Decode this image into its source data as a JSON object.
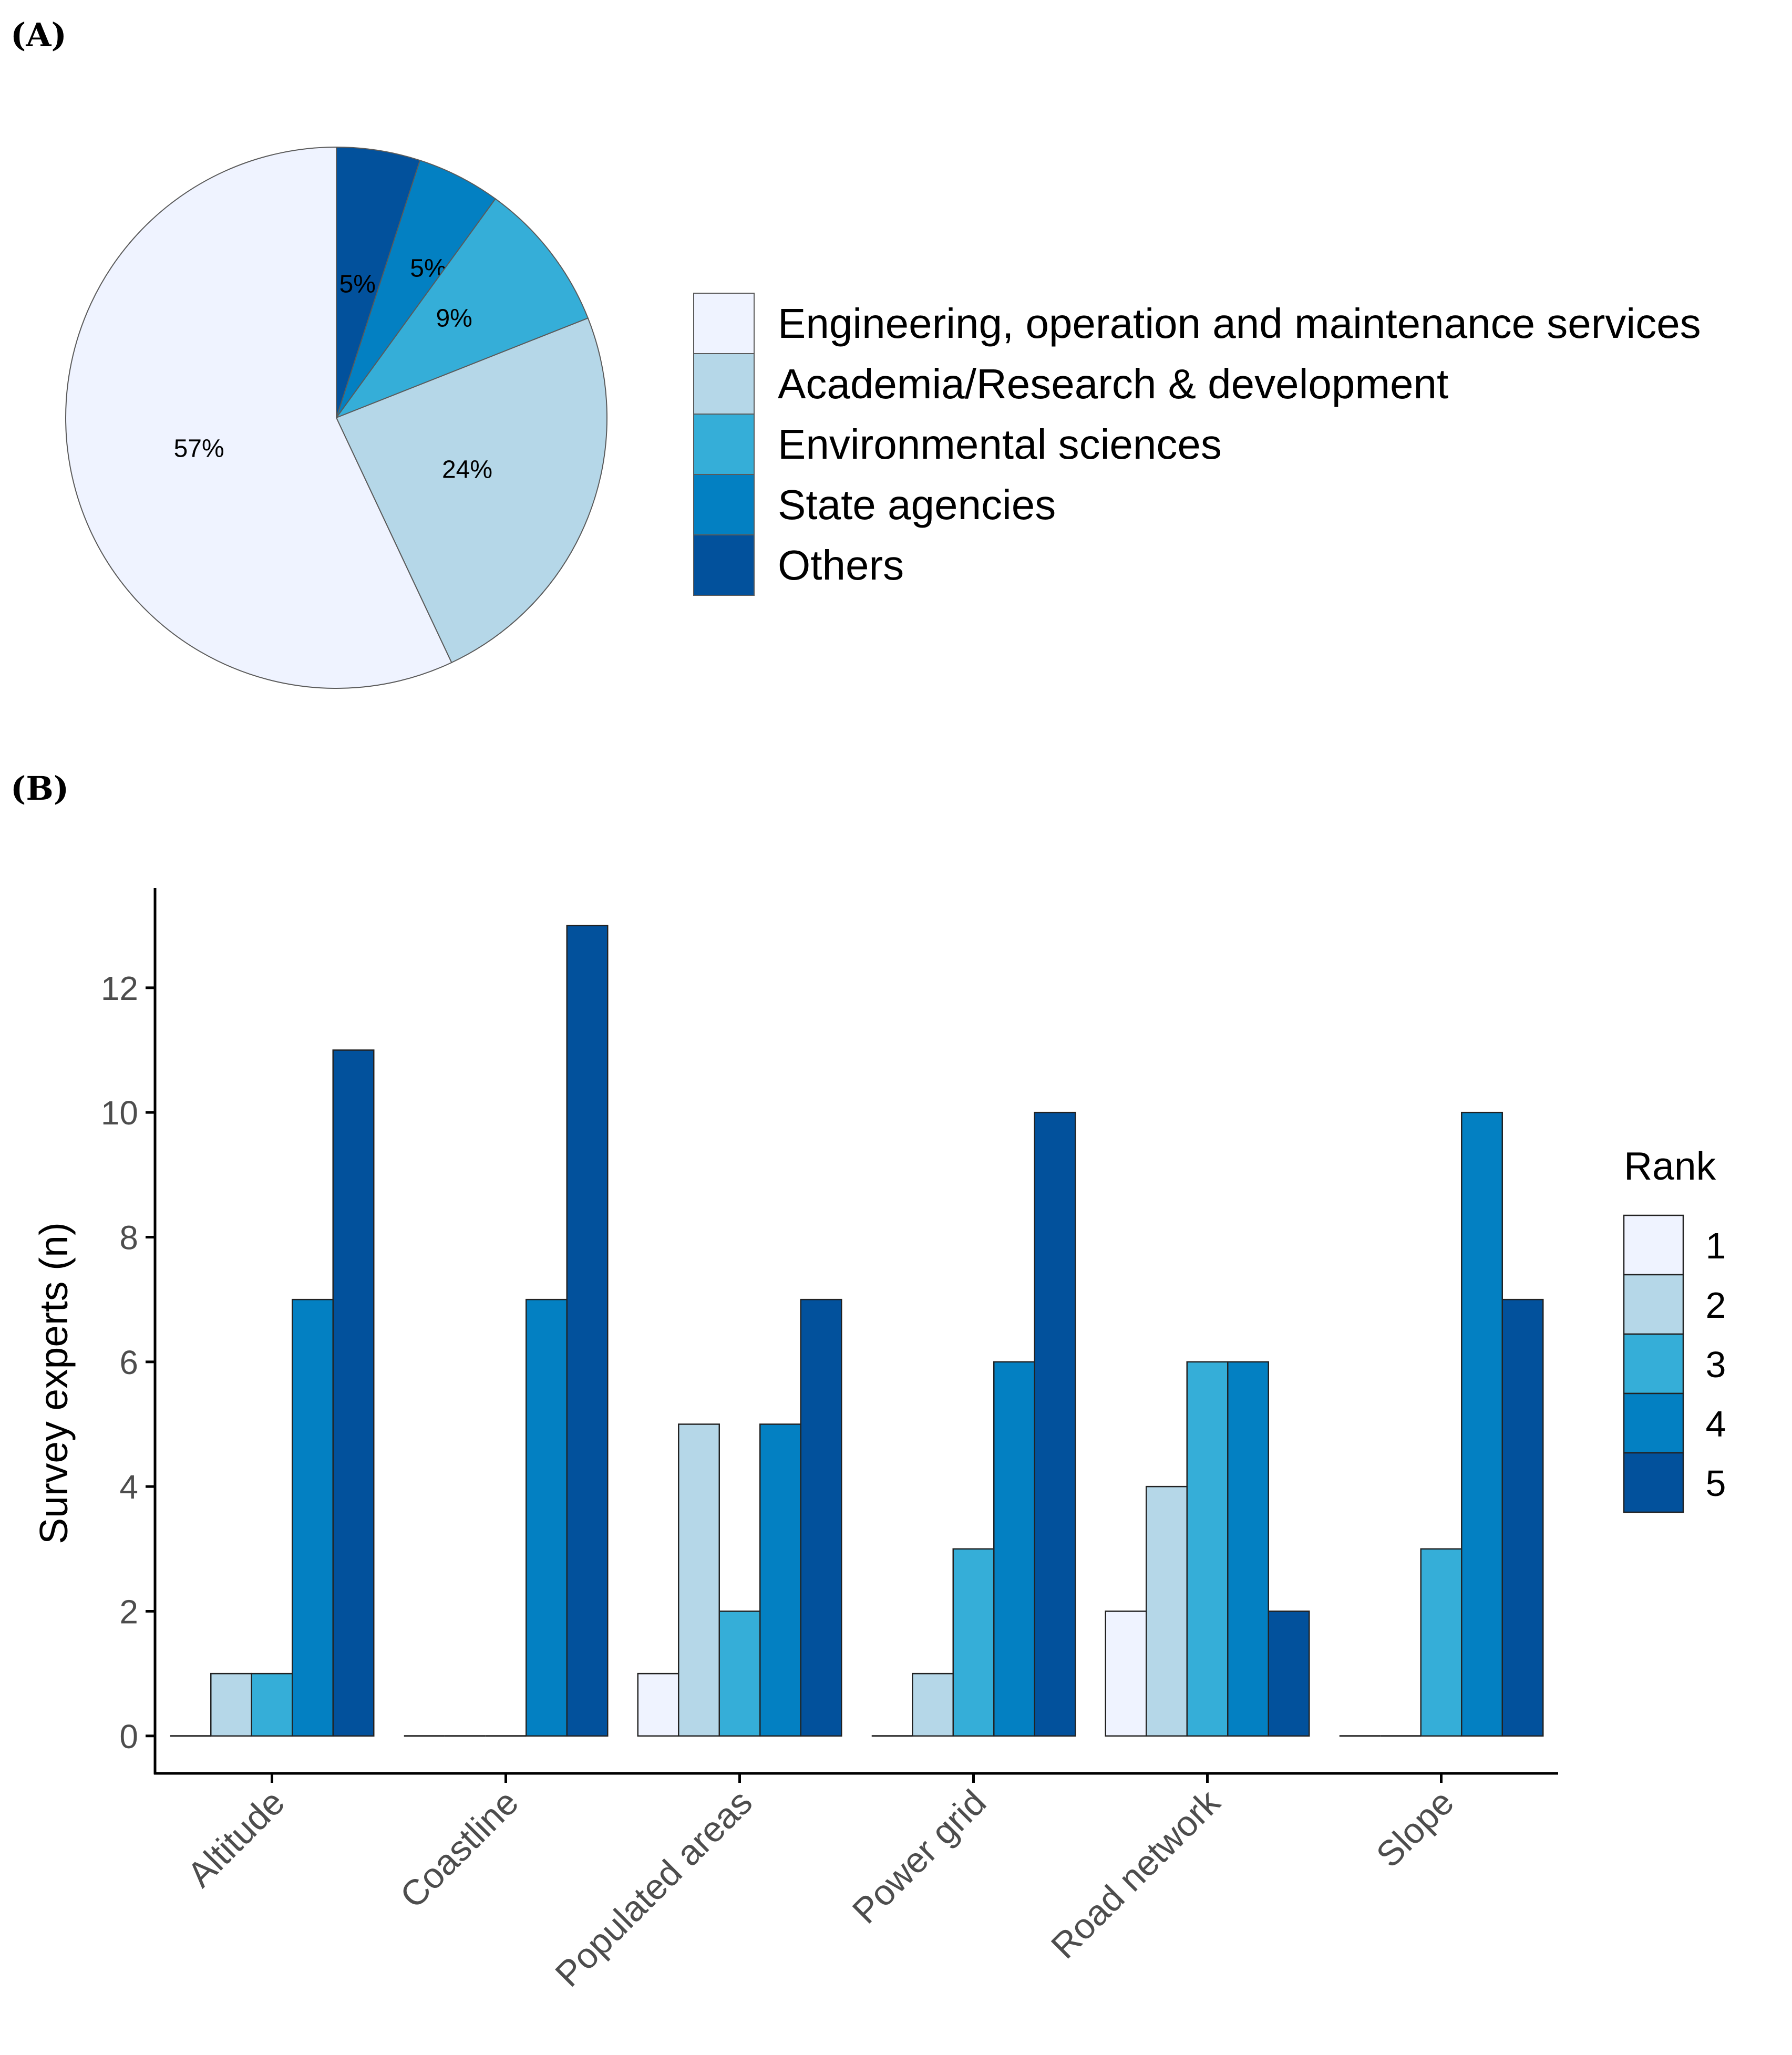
{
  "panels": {
    "a": "(A)",
    "b": "(B)"
  },
  "colors": [
    "#eff3ff",
    "#b5d7e8",
    "#35aed8",
    "#0380c2",
    "#02519c"
  ],
  "chart_data": [
    {
      "type": "pie",
      "title": "",
      "slices": [
        {
          "name": "Engineering, operation and maintenance services",
          "value": 57,
          "label": "57%"
        },
        {
          "name": "Academia/Research & development",
          "value": 24,
          "label": "24%"
        },
        {
          "name": "Environmental sciences",
          "value": 9,
          "label": "9%"
        },
        {
          "name": "State agencies",
          "value": 5,
          "label": "5%"
        },
        {
          "name": "Others",
          "value": 5,
          "label": "5%"
        }
      ],
      "legend_position": "right"
    },
    {
      "type": "bar",
      "title": "",
      "categories": [
        "Altitude",
        "Coastline",
        "Populated areas",
        "Power grid",
        "Road network",
        "Slope"
      ],
      "series": [
        {
          "name": "1",
          "values": [
            0,
            0,
            1,
            0,
            2,
            0
          ]
        },
        {
          "name": "2",
          "values": [
            1,
            0,
            5,
            1,
            4,
            0
          ]
        },
        {
          "name": "3",
          "values": [
            1,
            0,
            2,
            3,
            6,
            3
          ]
        },
        {
          "name": "4",
          "values": [
            7,
            7,
            5,
            6,
            6,
            10
          ]
        },
        {
          "name": "5",
          "values": [
            11,
            13,
            7,
            10,
            2,
            7
          ]
        }
      ],
      "xlabel": "",
      "ylabel": "Survey experts (n)",
      "yticks": [
        0,
        2,
        4,
        6,
        8,
        10,
        12
      ],
      "ylim": [
        -0.6,
        13.6
      ],
      "legend_title": "Rank",
      "legend_position": "right"
    }
  ]
}
